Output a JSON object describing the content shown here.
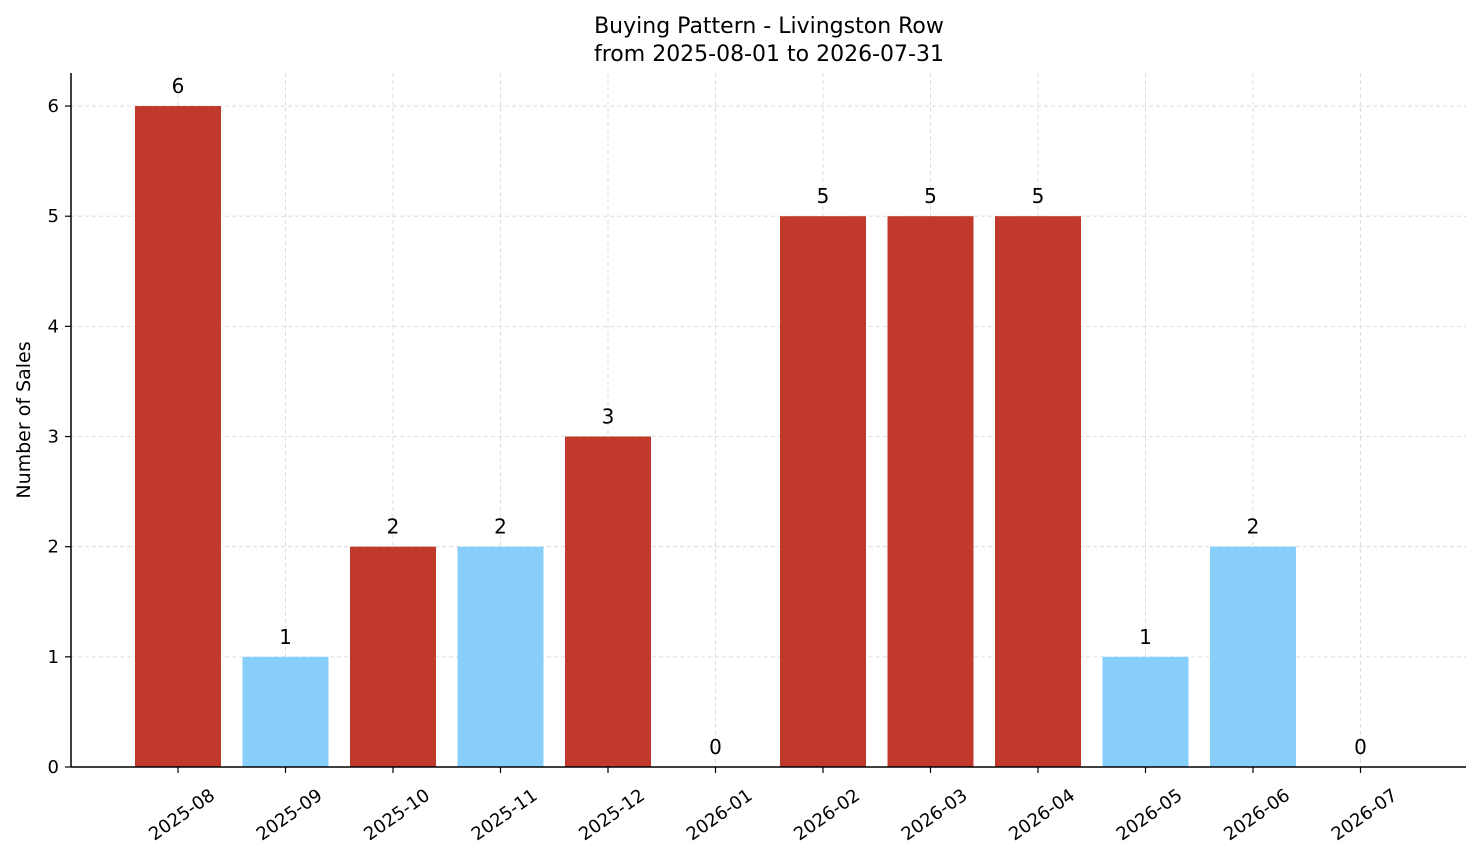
{
  "chart_data": {
    "type": "bar",
    "title": "Buying Pattern - Livingston Row",
    "subtitle": "from 2025-08-01 to 2026-07-31",
    "xlabel": "",
    "ylabel": "Number of Sales",
    "categories": [
      "2025-08",
      "2025-09",
      "2025-10",
      "2025-11",
      "2025-12",
      "2026-01",
      "2026-02",
      "2026-03",
      "2026-04",
      "2026-05",
      "2026-06",
      "2026-07"
    ],
    "values": [
      6,
      1,
      2,
      2,
      3,
      0,
      5,
      5,
      5,
      1,
      2,
      0
    ],
    "bar_colors": [
      "#c0392b",
      "#87cefa",
      "#c0392b",
      "#87cefa",
      "#c0392b",
      "#c0392b",
      "#c0392b",
      "#c0392b",
      "#c0392b",
      "#87cefa",
      "#87cefa",
      "#87cefa"
    ],
    "yticks": [
      0,
      1,
      2,
      3,
      4,
      5,
      6
    ],
    "ylim": [
      0,
      6.3
    ],
    "grid": true,
    "legend": "none"
  }
}
